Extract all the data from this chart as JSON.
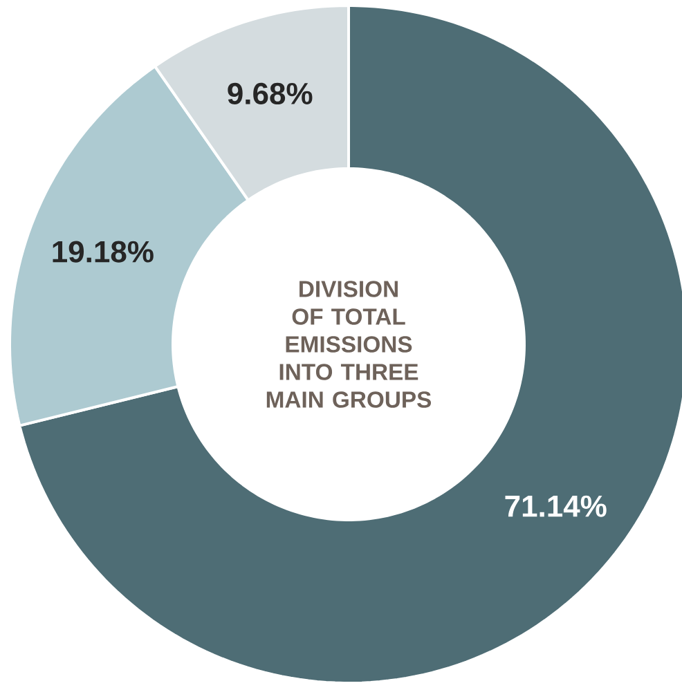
{
  "chart_data": {
    "type": "donut",
    "title": "DIVISION OF TOTAL EMISSIONS INTO THREE MAIN GROUPS",
    "categories": [
      null,
      null,
      null
    ],
    "values": [
      71.14,
      19.18,
      9.68
    ],
    "value_labels": [
      "71.14%",
      "19.18%",
      "9.68%"
    ],
    "colors": [
      "#4e6d75",
      "#adcad1",
      "#d4dcdf"
    ]
  }
}
